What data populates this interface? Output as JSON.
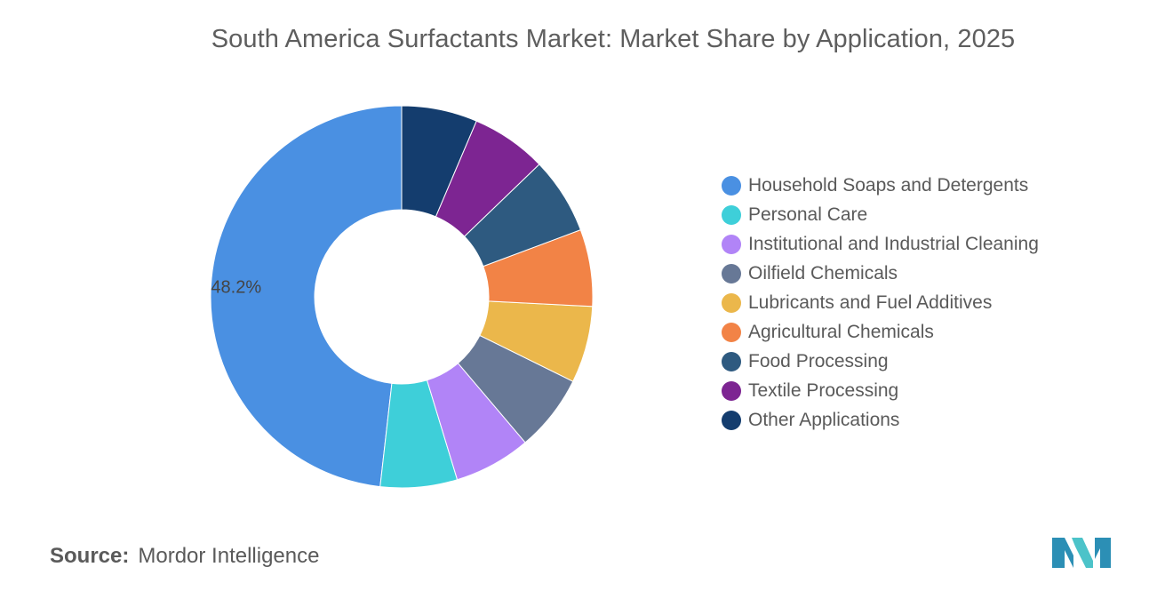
{
  "title": "South America Surfactants Market: Market Share by Application, 2025",
  "source": {
    "prefix": "Source:",
    "name": "Mordor Intelligence"
  },
  "colors": {
    "title_text": "#5e5e5e",
    "body_text": "#5a5a5a",
    "background": "#ffffff",
    "logo_primary": "#2c8fb5",
    "logo_secondary": "#4cc3c9"
  },
  "logo_icon": "mordor-intelligence-logo-icon",
  "chart_data": {
    "type": "pie",
    "style": "donut",
    "legend_position": "right",
    "series": [
      {
        "label": "Household Soaps and Detergents",
        "value": 48.2,
        "color": "#4a90e2",
        "data_label": "48.2%"
      },
      {
        "label": "Personal Care",
        "value": 6.5,
        "color": "#3ecfd9",
        "data_label": ""
      },
      {
        "label": "Institutional and Industrial Cleaning",
        "value": 6.5,
        "color": "#b184f7",
        "data_label": ""
      },
      {
        "label": "Oilfield Chemicals",
        "value": 6.5,
        "color": "#677896",
        "data_label": ""
      },
      {
        "label": "Lubricants and Fuel Additives",
        "value": 6.5,
        "color": "#ebb74b",
        "data_label": ""
      },
      {
        "label": "Agricultural Chemicals",
        "value": 6.5,
        "color": "#f28346",
        "data_label": ""
      },
      {
        "label": "Food Processing",
        "value": 6.5,
        "color": "#2e5a80",
        "data_label": ""
      },
      {
        "label": "Textile Processing",
        "value": 6.4,
        "color": "#7d2592",
        "data_label": ""
      },
      {
        "label": "Other Applications",
        "value": 6.4,
        "color": "#143d6e",
        "data_label": ""
      }
    ]
  }
}
